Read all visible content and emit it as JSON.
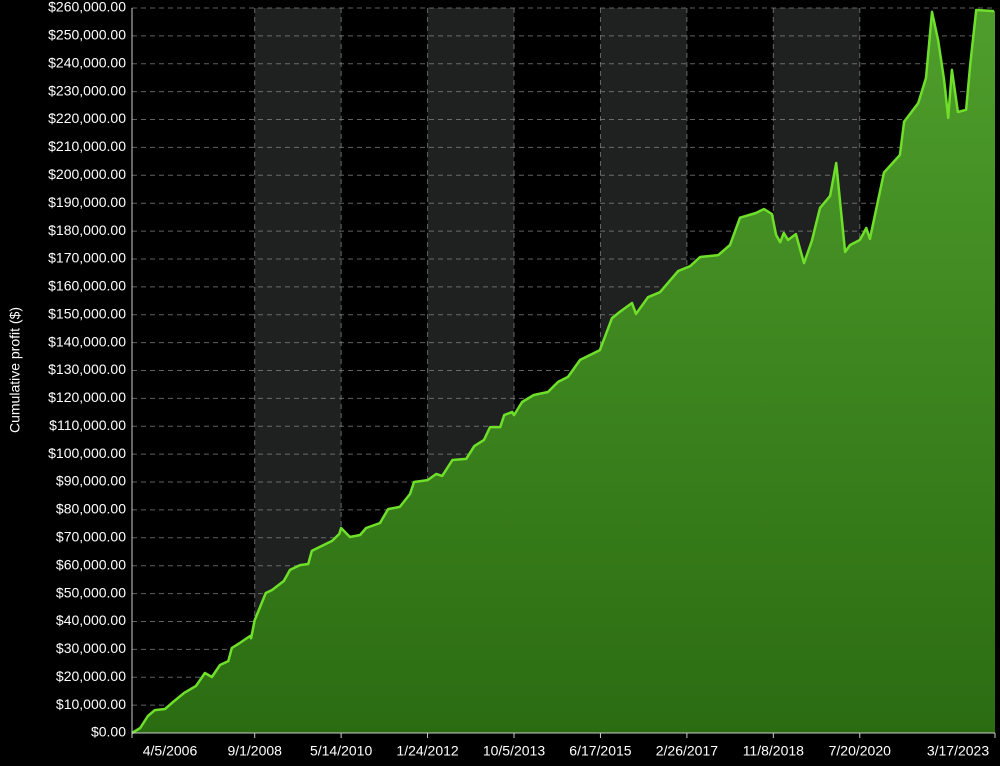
{
  "chart_data": {
    "type": "area",
    "y_label": "Cumulative profit ($)",
    "color": "#6fe02a",
    "grid": true,
    "x": [
      "2006-04-05",
      "2006-06-03",
      "2006-07-28",
      "2006-09-16",
      "2006-11-28",
      "2007-01-17",
      "2007-04-12",
      "2007-07-08",
      "2007-09-10",
      "2007-10-30",
      "2007-12-27",
      "2008-02-25",
      "2008-03-21",
      "2008-05-18",
      "2008-07-30",
      "2008-08-06",
      "2008-09-01",
      "2008-11-20",
      "2009-01-04",
      "2009-03-29",
      "2009-05-12",
      "2009-07-23",
      "2009-09-20",
      "2009-10-16",
      "2009-12-27",
      "2010-03-10",
      "2010-05-01",
      "2010-05-14",
      "2010-07-16",
      "2010-09-27",
      "2010-11-09",
      "2011-02-17",
      "2011-04-16",
      "2011-07-09",
      "2011-09-20",
      "2011-10-19",
      "2012-01-24",
      "2012-03-26",
      "2012-05-08",
      "2012-07-20",
      "2012-10-27",
      "2012-12-24",
      "2013-03-04",
      "2013-04-16",
      "2013-06-28",
      "2013-07-27",
      "2013-09-21",
      "2013-10-05",
      "2013-12-02",
      "2014-02-24",
      "2014-06-05",
      "2014-08-17",
      "2014-10-27",
      "2015-01-22",
      "2015-04-05",
      "2015-06-13",
      "2015-09-08",
      "2015-11-03",
      "2016-01-29",
      "2016-02-27",
      "2016-05-23",
      "2016-08-18",
      "2016-10-30",
      "2016-12-26",
      "2017-03-21",
      "2017-06-01",
      "2017-10-09",
      "2018-01-01",
      "2018-03-14",
      "2018-07-06",
      "2018-09-02",
      "2018-10-29",
      "2018-11-28",
      "2018-12-27",
      "2019-01-22",
      "2019-02-21",
      "2019-04-19",
      "2019-06-16",
      "2019-08-11",
      "2019-10-09",
      "2019-12-20",
      "2020-02-02",
      "2020-04-06",
      "2020-05-12",
      "2020-07-20",
      "2020-09-05",
      "2020-10-01",
      "2020-11-29",
      "2021-01-10",
      "2021-05-04",
      "2021-06-03",
      "2021-09-12",
      "2021-11-07",
      "2021-12-20",
      "2022-02-02",
      "2022-03-17",
      "2022-04-15",
      "2022-05-12",
      "2022-06-24",
      "2022-08-22",
      "2022-09-20",
      "2022-11-02",
      "2023-03-10"
    ],
    "values": [
      0,
      1800,
      6100,
      8200,
      8600,
      10800,
      14300,
      16900,
      21500,
      20100,
      24400,
      25800,
      30500,
      32300,
      34800,
      34000,
      40500,
      50200,
      51300,
      54500,
      58500,
      60200,
      60600,
      65300,
      67100,
      68900,
      71400,
      73500,
      70300,
      71000,
      73500,
      75300,
      80300,
      81100,
      85700,
      90000,
      90700,
      92900,
      92200,
      97900,
      98300,
      102900,
      105100,
      109700,
      109700,
      114000,
      115100,
      114000,
      118700,
      121200,
      122300,
      125900,
      127700,
      133800,
      135600,
      137300,
      148800,
      151000,
      154200,
      150300,
      156300,
      158100,
      162400,
      165700,
      167400,
      170700,
      171400,
      175000,
      184800,
      186500,
      187900,
      186100,
      178600,
      176000,
      179300,
      176800,
      178900,
      168500,
      176400,
      188300,
      192600,
      204400,
      172500,
      175000,
      176800,
      181100,
      177200,
      191200,
      201000,
      207300,
      219200,
      225900,
      234900,
      258600,
      248500,
      234200,
      220600,
      237800,
      222700,
      223500,
      239600,
      259300,
      258900
    ],
    "xlim": [
      "2006-04-05",
      "2023-03-17"
    ],
    "xticks": [
      {
        "value": "2006-04-05",
        "label": "4/5/2006"
      },
      {
        "value": "2008-09-01",
        "label": "9/1/2008"
      },
      {
        "value": "2010-05-14",
        "label": "5/14/2010"
      },
      {
        "value": "2012-01-24",
        "label": "1/24/2012"
      },
      {
        "value": "2013-10-05",
        "label": "10/5/2013"
      },
      {
        "value": "2015-06-17",
        "label": "6/17/2015"
      },
      {
        "value": "2017-02-26",
        "label": "2/26/2017"
      },
      {
        "value": "2018-11-08",
        "label": "11/8/2018"
      },
      {
        "value": "2020-07-20",
        "label": "7/20/2020"
      },
      {
        "value": "2023-03-17",
        "label": "3/17/2023"
      }
    ],
    "ylim": [
      0,
      260000
    ],
    "yticks": [
      {
        "value": 0,
        "label": "$0.00"
      },
      {
        "value": 10000,
        "label": "$10,000.00"
      },
      {
        "value": 20000,
        "label": "$20,000.00"
      },
      {
        "value": 30000,
        "label": "$30,000.00"
      },
      {
        "value": 40000,
        "label": "$40,000.00"
      },
      {
        "value": 50000,
        "label": "$50,000.00"
      },
      {
        "value": 60000,
        "label": "$60,000.00"
      },
      {
        "value": 70000,
        "label": "$70,000.00"
      },
      {
        "value": 80000,
        "label": "$80,000.00"
      },
      {
        "value": 90000,
        "label": "$90,000.00"
      },
      {
        "value": 100000,
        "label": "$100,000.00"
      },
      {
        "value": 110000,
        "label": "$110,000.00"
      },
      {
        "value": 120000,
        "label": "$120,000.00"
      },
      {
        "value": 130000,
        "label": "$130,000.00"
      },
      {
        "value": 140000,
        "label": "$140,000.00"
      },
      {
        "value": 150000,
        "label": "$150,000.00"
      },
      {
        "value": 160000,
        "label": "$160,000.00"
      },
      {
        "value": 170000,
        "label": "$170,000.00"
      },
      {
        "value": 180000,
        "label": "$180,000.00"
      },
      {
        "value": 190000,
        "label": "$190,000.00"
      },
      {
        "value": 200000,
        "label": "$200,000.00"
      },
      {
        "value": 210000,
        "label": "$210,000.00"
      },
      {
        "value": 220000,
        "label": "$220,000.00"
      },
      {
        "value": 230000,
        "label": "$230,000.00"
      },
      {
        "value": 240000,
        "label": "$240,000.00"
      },
      {
        "value": 250000,
        "label": "$250,000.00"
      },
      {
        "value": 260000,
        "label": "$260,000.00"
      }
    ]
  }
}
